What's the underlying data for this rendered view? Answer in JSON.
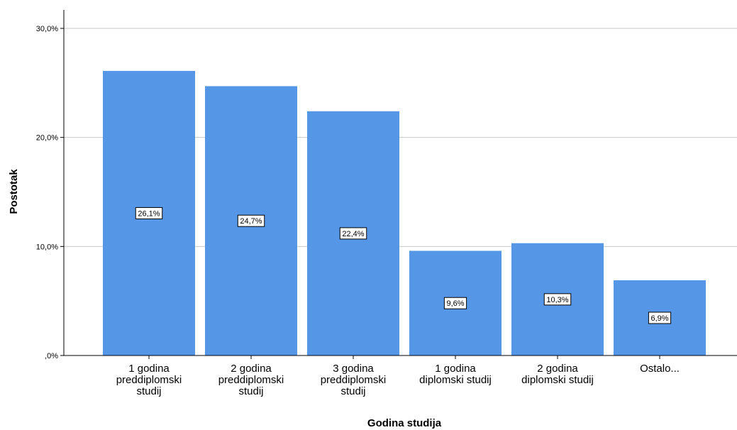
{
  "chart_data": {
    "type": "bar",
    "title": "",
    "xlabel": "Godina studija",
    "ylabel": "Postotak",
    "ylim": [
      0,
      30
    ],
    "yticks": [
      0,
      10,
      20,
      30
    ],
    "ytick_labels": [
      ",0%",
      "10,0%",
      "20,0%",
      "30,0%"
    ],
    "grid": true,
    "categories": [
      "1 godina preddiplomski studij",
      "2 godina preddiplomski studij",
      "3 godina preddiplomski studij",
      "1 godina diplomski studij",
      "2 godina diplomski studij",
      "Ostalo..."
    ],
    "category_label_lines": [
      [
        "1 godina",
        "preddiplomski",
        "studij"
      ],
      [
        "2 godina",
        "preddiplomski",
        "studij"
      ],
      [
        "3 godina",
        "preddiplomski",
        "studij"
      ],
      [
        "1 godina",
        "diplomski studij"
      ],
      [
        "2 godina",
        "diplomski studij"
      ],
      [
        "Ostalo..."
      ]
    ],
    "values": [
      26.1,
      24.7,
      22.4,
      9.6,
      10.3,
      6.9
    ],
    "data_labels": [
      "26,1%",
      "24,7%",
      "22,4%",
      "9,6%",
      "10,3%",
      "6,9%"
    ],
    "colors": {
      "bar": "#5596e6",
      "grid": "#c8c8c8",
      "axis": "#000000"
    }
  }
}
